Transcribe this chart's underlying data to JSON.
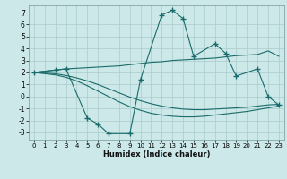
{
  "bg_color": "#cce8e8",
  "grid_color": "#aacccc",
  "line_color": "#1a6b6b",
  "xlabel": "Humidex (Indice chaleur)",
  "xlim": [
    -0.5,
    23.5
  ],
  "ylim": [
    -3.6,
    7.6
  ],
  "xticks": [
    0,
    1,
    2,
    3,
    4,
    5,
    6,
    7,
    8,
    9,
    10,
    11,
    12,
    13,
    14,
    15,
    16,
    17,
    18,
    19,
    20,
    21,
    22,
    23
  ],
  "yticks": [
    -3,
    -2,
    -1,
    0,
    1,
    2,
    3,
    4,
    5,
    6,
    7
  ],
  "line1_x": [
    0,
    2,
    3,
    4,
    5,
    6,
    7,
    8,
    9,
    10,
    11,
    12,
    13,
    14,
    15,
    16,
    17,
    18,
    19,
    20,
    21,
    22,
    23
  ],
  "line1_y": [
    2.0,
    2.2,
    2.3,
    2.35,
    2.4,
    2.45,
    2.5,
    2.55,
    2.65,
    2.75,
    2.85,
    2.9,
    3.0,
    3.05,
    3.1,
    3.15,
    3.2,
    3.3,
    3.4,
    3.45,
    3.5,
    3.8,
    3.35
  ],
  "line2_x": [
    0,
    2,
    3,
    4,
    5,
    6,
    7,
    8,
    9,
    10,
    11,
    12,
    13,
    14,
    15,
    16,
    17,
    18,
    19,
    20,
    21,
    22,
    23
  ],
  "line2_y": [
    2.0,
    1.9,
    1.75,
    1.55,
    1.3,
    1.0,
    0.65,
    0.3,
    -0.05,
    -0.35,
    -0.6,
    -0.8,
    -0.95,
    -1.05,
    -1.1,
    -1.1,
    -1.05,
    -1.0,
    -0.95,
    -0.9,
    -0.8,
    -0.7,
    -0.65
  ],
  "line3_x": [
    0,
    2,
    3,
    4,
    5,
    6,
    7,
    8,
    9,
    10,
    11,
    12,
    13,
    14,
    15,
    16,
    17,
    18,
    19,
    20,
    21,
    22,
    23
  ],
  "line3_y": [
    2.0,
    1.8,
    1.6,
    1.3,
    0.9,
    0.45,
    0.0,
    -0.45,
    -0.85,
    -1.15,
    -1.4,
    -1.55,
    -1.65,
    -1.7,
    -1.7,
    -1.65,
    -1.55,
    -1.45,
    -1.35,
    -1.25,
    -1.1,
    -0.95,
    -0.8
  ],
  "main_x": [
    0,
    2,
    3,
    5,
    6,
    7,
    9,
    10,
    12,
    13,
    14,
    15,
    17,
    18,
    19,
    21,
    22,
    23
  ],
  "main_y": [
    2.0,
    2.2,
    2.3,
    -1.8,
    -2.3,
    -3.1,
    -3.1,
    1.4,
    6.8,
    7.2,
    6.5,
    3.35,
    4.4,
    3.6,
    1.7,
    2.3,
    0.0,
    -0.7
  ]
}
